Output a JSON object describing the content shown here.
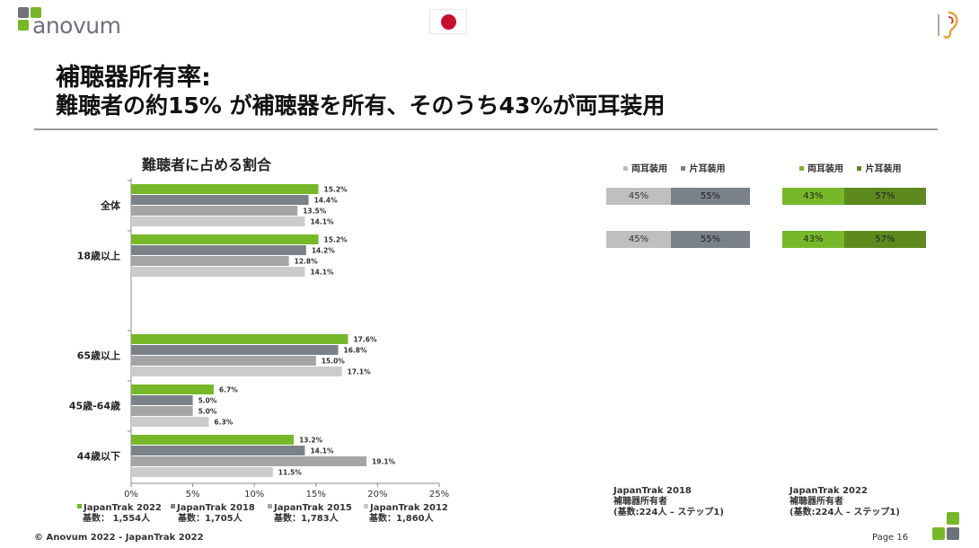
{
  "header": {
    "logo_text": "anovum",
    "title_line1": "補聴器所有率:",
    "title_line2": "難聴者の約15% が補聴器を所有、そのうち43%が両耳装用"
  },
  "colors": {
    "jt2022": "#77b82a",
    "jt2018": "#7b8189",
    "jt2015": "#a5a5a5",
    "jt2012": "#cbcbcb",
    "bilateral": "#bfbfbf",
    "unilateral": "#7b8189",
    "bilateral_2022": "#77b82a",
    "unilateral_2022": "#5c8a1e"
  },
  "chart_data": [
    {
      "type": "bar",
      "orientation": "horizontal",
      "title": "難聴者に占める割合",
      "categories": [
        "全体",
        "18歳以上",
        "65歳以上",
        "45歳-64歳",
        "44歳以下"
      ],
      "series": [
        {
          "name": "JapanTrak 2022",
          "values": [
            15.2,
            15.2,
            17.6,
            6.7,
            13.2
          ]
        },
        {
          "name": "JapanTrak 2018",
          "values": [
            14.4,
            14.2,
            16.8,
            5.0,
            14.1
          ]
        },
        {
          "name": "JapanTrak 2015",
          "values": [
            13.5,
            12.8,
            15.0,
            5.0,
            19.1
          ]
        },
        {
          "name": "JapanTrak 2012",
          "values": [
            14.1,
            14.1,
            17.1,
            6.3,
            11.5
          ]
        }
      ],
      "value_labels": [
        [
          "15.2%",
          "14.4%",
          "13.5%",
          "14.1%"
        ],
        [
          "15.2%",
          "14.2%",
          "12.8%",
          "14.1%"
        ],
        [
          "17.6%",
          "16.8%",
          "15.0%",
          "17.1%"
        ],
        [
          "6.7%",
          "5.0%",
          "5.0%",
          "6.3%"
        ],
        [
          "13.2%",
          "14.1%",
          "19.1%",
          "11.5%"
        ]
      ],
      "xlim": [
        0,
        25
      ],
      "xticks": [
        "0%",
        "5%",
        "10%",
        "15%",
        "20%",
        "25%"
      ],
      "legend": [
        {
          "name": "JapanTrak 2022",
          "base": "基数： 1,554人"
        },
        {
          "name": "JapanTrak 2018",
          "base": "基数：1,705人"
        },
        {
          "name": "JapanTrak 2015",
          "base": "基数：1,783人"
        },
        {
          "name": "JapanTrak 2012",
          "base": "基数：1,860人"
        }
      ],
      "legend_position": "bottom"
    },
    {
      "type": "bar",
      "orientation": "horizontal",
      "stacked": true,
      "legend": [
        "両耳装用",
        "片耳装用"
      ],
      "bars": [
        {
          "values": [
            45,
            55
          ],
          "labels": [
            "45%",
            "55%"
          ]
        },
        {
          "values": [
            45,
            55
          ],
          "labels": [
            "45%",
            "55%"
          ]
        }
      ],
      "note": [
        "JapanTrak 2018",
        "補聴器所有者",
        "(基数:224人 – ステップ1)"
      ]
    },
    {
      "type": "bar",
      "orientation": "horizontal",
      "stacked": true,
      "legend": [
        "両耳装用",
        "片耳装用"
      ],
      "bars": [
        {
          "values": [
            43,
            57
          ],
          "labels": [
            "43%",
            "57%"
          ]
        },
        {
          "values": [
            43,
            57
          ],
          "labels": [
            "43%",
            "57%"
          ]
        }
      ],
      "note": [
        "JapanTrak 2022",
        "補聴器所有者",
        "(基数:224人 – ステップ1)"
      ]
    }
  ],
  "footer": {
    "copyright": "© Anovum 2022 - JapanTrak 2022",
    "page": "Page 16"
  }
}
